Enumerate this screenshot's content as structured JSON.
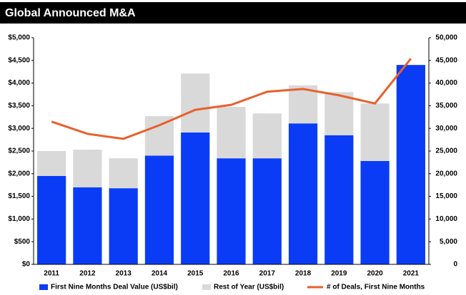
{
  "chart_data": {
    "type": "bar-line",
    "title": "Global Announced M&A",
    "categories": [
      "2011",
      "2012",
      "2013",
      "2014",
      "2015",
      "2016",
      "2017",
      "2018",
      "2019",
      "2020",
      "2021"
    ],
    "series": [
      {
        "name": "First Nine Months Deal Value (US$bil)",
        "color": "#0b3cf5",
        "type": "bar",
        "values": [
          1950,
          1700,
          1680,
          2400,
          2910,
          2340,
          2340,
          3110,
          2850,
          2280,
          4400
        ]
      },
      {
        "name": "Rest of Year (US$bil)",
        "color": "#d9d9d9",
        "type": "bar",
        "values": [
          550,
          830,
          660,
          870,
          1300,
          1135,
          990,
          840,
          950,
          1270,
          0
        ]
      },
      {
        "name": "# of Deals, First Nine Months",
        "color": "#e8602c",
        "type": "line",
        "axis": "y2",
        "values": [
          31500,
          28800,
          27700,
          30700,
          34100,
          35200,
          38100,
          38700,
          37300,
          35500,
          45400
        ]
      }
    ],
    "ylim": [
      0,
      5000
    ],
    "yticks": [
      {
        "value": 0,
        "label": "$0"
      },
      {
        "value": 500,
        "label": "$500"
      },
      {
        "value": 1000,
        "label": "$1,000"
      },
      {
        "value": 1500,
        "label": "$1,500"
      },
      {
        "value": 2000,
        "label": "$2,000"
      },
      {
        "value": 2500,
        "label": "$2,500"
      },
      {
        "value": 3000,
        "label": "$3,000"
      },
      {
        "value": 3500,
        "label": "$3,500"
      },
      {
        "value": 4000,
        "label": "$4,000"
      },
      {
        "value": 4500,
        "label": "$4,500"
      },
      {
        "value": 5000,
        "label": "$5,000"
      }
    ],
    "y2lim": [
      0,
      50000
    ],
    "y2ticks": [
      0,
      {
        "value": 5000,
        "label": "5,000"
      },
      {
        "value": 10000,
        "label": "10,000"
      },
      {
        "value": 15000,
        "label": "15,000"
      },
      {
        "value": 20000,
        "label": "20,000"
      },
      {
        "value": 25000,
        "label": "25,000"
      },
      {
        "value": 30000,
        "label": "30,000"
      },
      {
        "value": 35000,
        "label": "35,000"
      },
      {
        "value": 40000,
        "label": "40,000"
      },
      {
        "value": 45000,
        "label": "45,000"
      },
      {
        "value": 50000,
        "label": "50,000"
      }
    ]
  }
}
